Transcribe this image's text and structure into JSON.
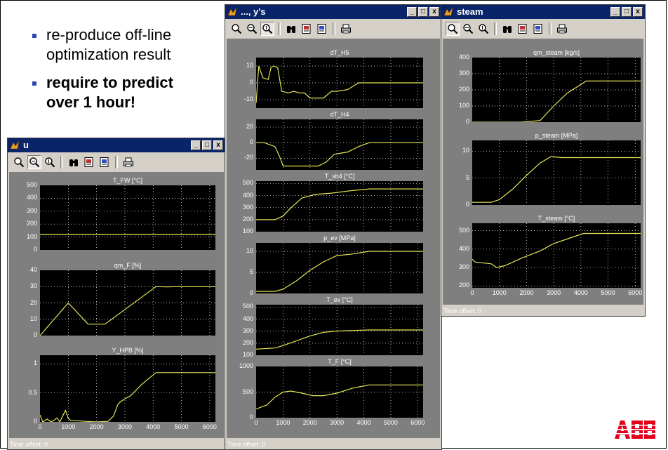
{
  "bullets": [
    {
      "text": "re-produce off-line optimization result",
      "lines": [
        "re-produce off-line",
        "optimization result"
      ],
      "bold": false
    },
    {
      "text": "require to predict over 1 hour!",
      "lines": [
        "require to predict",
        "over 1 hour!"
      ],
      "bold": true
    }
  ],
  "logo": "ABB",
  "colors": {
    "trace": "#e6e65a",
    "axes_bg": "#000000",
    "grid": "#ffffff",
    "figure_bg": "#7f7f7f",
    "titlebar": "#0a246a",
    "accent": "#2a4ab0",
    "logo": "#e2001a"
  },
  "windows": {
    "u": {
      "title": "u",
      "status": "Time offset:  0",
      "minimize": "_",
      "maximize": "□",
      "close": "x"
    },
    "ys": {
      "title": "..., y's",
      "status": "Time offset:  0",
      "minimize": "_",
      "maximize": "□",
      "close": "x"
    },
    "steam": {
      "title": "steam",
      "status": "Time offset:  0",
      "minimize": "_",
      "maximize": "□",
      "close": "x"
    }
  },
  "toolbar_icons": [
    "zoom-in-icon",
    "zoom-x-icon",
    "zoom-y-icon",
    "autoscale-binoculars-icon",
    "save-axes-icon",
    "restore-axes-icon",
    "print-icon"
  ],
  "chart_data": [
    {
      "window": "u",
      "type": "line",
      "title": "T_FW [°C]",
      "ylim": [
        0,
        500
      ],
      "yticks": [
        "500",
        "400",
        "300",
        "200",
        "100",
        "0"
      ],
      "xlim": [
        0,
        6200
      ],
      "xticks": [],
      "grid": true,
      "x": [
        0,
        6200
      ],
      "y": [
        120,
        120
      ]
    },
    {
      "window": "u",
      "type": "line",
      "title": "qm_F [%]",
      "ylim": [
        0,
        40
      ],
      "yticks": [
        "40",
        "30",
        "20",
        "10",
        "0"
      ],
      "xlim": [
        0,
        6200
      ],
      "xticks": [],
      "grid": true,
      "x": [
        0,
        1000,
        1700,
        2300,
        4100,
        4500,
        4800,
        6200
      ],
      "y": [
        0,
        20,
        7,
        7,
        30,
        29.8,
        30,
        30
      ]
    },
    {
      "window": "u",
      "type": "line",
      "title": "Y_HPB [%]",
      "ylim": [
        0,
        1.15
      ],
      "yticks": [
        "1",
        "0.5",
        "0"
      ],
      "xlim": [
        0,
        6200
      ],
      "xticks": [
        "0",
        "1000",
        "2000",
        "3000",
        "4000",
        "5000",
        "6000"
      ],
      "grid": true,
      "x": [
        0,
        100,
        250,
        400,
        500,
        600,
        700,
        800,
        900,
        1000,
        1100,
        1300,
        1600,
        2000,
        2400,
        2600,
        2750,
        2850,
        3000,
        3200,
        3600,
        4100,
        6200
      ],
      "y": [
        0.12,
        0,
        0.05,
        0,
        0.03,
        0.07,
        0,
        0.1,
        0.2,
        0.06,
        0.02,
        0.02,
        0.01,
        0,
        0.01,
        0.1,
        0.3,
        0.35,
        0.4,
        0.45,
        0.65,
        0.85,
        0.85
      ]
    },
    {
      "window": "ys",
      "type": "line",
      "title": "dT_H5",
      "ylim": [
        -15,
        15
      ],
      "yticks": [
        "10",
        "0",
        "-10"
      ],
      "xlim": [
        0,
        6200
      ],
      "xticks": [],
      "grid": true,
      "x": [
        0,
        100,
        250,
        450,
        550,
        650,
        800,
        950,
        1200,
        1400,
        1600,
        1800,
        2000,
        2500,
        2800,
        3000,
        3400,
        3800,
        4100,
        6200
      ],
      "y": [
        -12,
        10,
        3,
        2,
        9,
        10,
        9,
        -5,
        -6,
        -5,
        -6,
        -6,
        -9,
        -9,
        -5,
        -5,
        -4,
        0,
        0,
        0
      ]
    },
    {
      "window": "ys",
      "type": "line",
      "title": "dT_H4",
      "ylim": [
        -35,
        30
      ],
      "yticks": [
        "20",
        "0",
        "-20"
      ],
      "xlim": [
        0,
        6200
      ],
      "xticks": [],
      "grid": true,
      "x": [
        0,
        300,
        700,
        900,
        1000,
        1600,
        2300,
        2600,
        2900,
        3400,
        3800,
        4200,
        6200
      ],
      "y": [
        0,
        0,
        -5,
        -20,
        -30,
        -30,
        -30,
        -25,
        -15,
        -12,
        -5,
        0,
        0
      ]
    },
    {
      "window": "ys",
      "type": "line",
      "title": "T_sh4 [°C]",
      "ylim": [
        100,
        520
      ],
      "yticks": [
        "500",
        "400",
        "300",
        "200",
        "100"
      ],
      "xlim": [
        0,
        6200
      ],
      "xticks": [],
      "grid": true,
      "x": [
        0,
        700,
        1000,
        1300,
        1700,
        2200,
        2800,
        3500,
        4200,
        6200
      ],
      "y": [
        200,
        200,
        230,
        300,
        380,
        410,
        420,
        440,
        455,
        455
      ]
    },
    {
      "window": "ys",
      "type": "line",
      "title": "p_ev [MPa]",
      "ylim": [
        0,
        12
      ],
      "yticks": [
        "10",
        "5",
        "0"
      ],
      "xlim": [
        0,
        6200
      ],
      "xticks": [],
      "grid": true,
      "x": [
        0,
        700,
        1000,
        1500,
        2000,
        2500,
        3000,
        3500,
        4200,
        6200
      ],
      "y": [
        0.5,
        0.5,
        1,
        3,
        5.5,
        7.5,
        9,
        9.3,
        10,
        10
      ]
    },
    {
      "window": "ys",
      "type": "line",
      "title": "T_ev [°C]",
      "ylim": [
        100,
        520
      ],
      "yticks": [
        "500",
        "400",
        "300",
        "200",
        "100"
      ],
      "xlim": [
        0,
        6200
      ],
      "xticks": [],
      "grid": true,
      "x": [
        0,
        700,
        1000,
        1500,
        2000,
        2500,
        3000,
        3500,
        4200,
        6200
      ],
      "y": [
        150,
        160,
        180,
        220,
        260,
        290,
        300,
        305,
        310,
        310
      ]
    },
    {
      "window": "ys",
      "type": "line",
      "title": "T_F [°C]",
      "ylim": [
        0,
        1000
      ],
      "yticks": [
        "1000",
        "500",
        "0"
      ],
      "xlim": [
        0,
        6200
      ],
      "xticks": [
        "0",
        "1000",
        "2000",
        "3000",
        "4000",
        "5000",
        "6000"
      ],
      "grid": true,
      "x": [
        0,
        400,
        700,
        1000,
        1300,
        1700,
        2100,
        2500,
        3000,
        3600,
        4200,
        6200
      ],
      "y": [
        170,
        250,
        400,
        500,
        520,
        480,
        430,
        430,
        480,
        580,
        640,
        640
      ]
    },
    {
      "window": "steam",
      "type": "line",
      "title": "qm_steam [kg/s]",
      "ylim": [
        0,
        400
      ],
      "yticks": [
        "400",
        "300",
        "200",
        "100",
        "0"
      ],
      "xlim": [
        0,
        6200
      ],
      "xticks": [],
      "grid": true,
      "x": [
        0,
        1800,
        2500,
        3000,
        3500,
        4200,
        6200
      ],
      "y": [
        0,
        0,
        10,
        100,
        180,
        255,
        255
      ]
    },
    {
      "window": "steam",
      "type": "line",
      "title": "p_steam [MPa]",
      "ylim": [
        0,
        12
      ],
      "yticks": [
        "10",
        "5",
        "0"
      ],
      "xlim": [
        0,
        6200
      ],
      "xticks": [],
      "grid": true,
      "x": [
        0,
        700,
        1000,
        1500,
        2000,
        2500,
        2900,
        3300,
        3800,
        6200
      ],
      "y": [
        0.5,
        0.5,
        1,
        3,
        5.5,
        7.8,
        9,
        8.8,
        8.8,
        8.8
      ]
    },
    {
      "window": "steam",
      "type": "line",
      "title": "T_steam [°C]",
      "ylim": [
        190,
        540
      ],
      "yticks": [
        "500",
        "400",
        "300",
        "200"
      ],
      "xlim": [
        0,
        6200
      ],
      "xticks": [
        "0",
        "1000",
        "2000",
        "3000",
        "4000",
        "5000",
        "6000"
      ],
      "grid": true,
      "x": [
        0,
        100,
        700,
        900,
        1200,
        1800,
        2500,
        3000,
        3600,
        4100,
        6200
      ],
      "y": [
        345,
        330,
        320,
        300,
        310,
        350,
        390,
        430,
        460,
        485,
        485
      ]
    }
  ]
}
